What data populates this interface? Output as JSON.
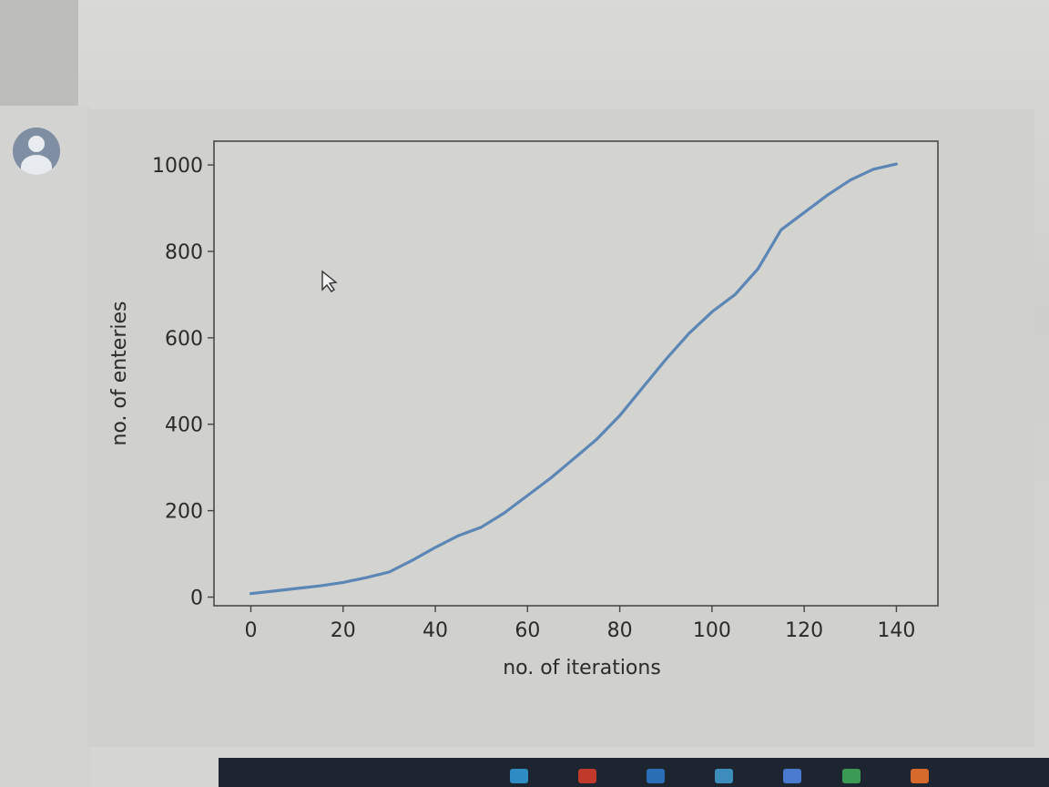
{
  "chart_data": {
    "type": "line",
    "xlabel": "no. of iterations",
    "ylabel": "no. of enteries",
    "xlim": [
      -8,
      149
    ],
    "ylim": [
      -20,
      1055
    ],
    "xticks": [
      0,
      20,
      40,
      60,
      80,
      100,
      120,
      140
    ],
    "yticks": [
      0,
      200,
      400,
      600,
      800,
      1000
    ],
    "grid": false,
    "color": "#5b86b5",
    "x": [
      0,
      5,
      10,
      15,
      20,
      25,
      30,
      35,
      40,
      45,
      50,
      55,
      60,
      65,
      70,
      75,
      80,
      85,
      90,
      95,
      100,
      105,
      110,
      115,
      120,
      125,
      130,
      135,
      140
    ],
    "y": [
      8,
      14,
      20,
      26,
      34,
      45,
      58,
      85,
      115,
      142,
      162,
      195,
      235,
      275,
      320,
      365,
      420,
      485,
      550,
      610,
      660,
      700,
      760,
      850,
      890,
      930,
      965,
      990,
      1002
    ]
  },
  "icons": {
    "avatar": "user-avatar-icon",
    "cursor": "mouse-cursor-icon"
  }
}
